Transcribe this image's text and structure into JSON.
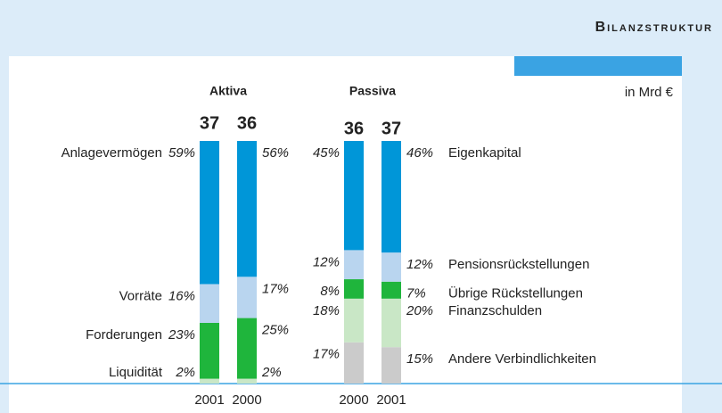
{
  "header": "Bilanzstruktur",
  "chart_data": {
    "type": "stacked-bar-100",
    "unit": "in Mrd €",
    "groups": [
      {
        "name": "Aktiva",
        "categories": [
          "2001",
          "2000"
        ],
        "totals": [
          37,
          36
        ],
        "series": [
          {
            "name": "Liquidität",
            "color": "#c9e7c6",
            "values": [
              2,
              2
            ],
            "value_labels": [
              "2%",
              "2%"
            ]
          },
          {
            "name": "Forderungen",
            "color": "#1fb53c",
            "values": [
              23,
              25
            ],
            "value_labels": [
              "23%",
              "25%"
            ]
          },
          {
            "name": "Vorräte",
            "color": "#b9d5ef",
            "values": [
              16,
              17
            ],
            "value_labels": [
              "16%",
              "17%"
            ]
          },
          {
            "name": "Anlagevermögen",
            "color": "#0096d8",
            "values": [
              59,
              56
            ],
            "value_labels": [
              "59%",
              "56%"
            ]
          }
        ]
      },
      {
        "name": "Passiva",
        "categories": [
          "2000",
          "2001"
        ],
        "totals": [
          36,
          37
        ],
        "series": [
          {
            "name": "Andere Verbindlichkeiten",
            "color": "#cbcbcb",
            "values": [
              17,
              15
            ],
            "value_labels": [
              "17%",
              "15%"
            ]
          },
          {
            "name": "Finanzschulden",
            "color": "#c9e7c6",
            "values": [
              18,
              20
            ],
            "value_labels": [
              "18%",
              "20%"
            ]
          },
          {
            "name": "Übrige Rückstellungen",
            "color": "#1fb53c",
            "values": [
              8,
              7
            ],
            "value_labels": [
              "8%",
              "7%"
            ]
          },
          {
            "name": "Pensionsrückstellungen",
            "color": "#b9d5ef",
            "values": [
              12,
              12
            ],
            "value_labels": [
              "12%",
              "12%"
            ]
          },
          {
            "name": "Eigenkapital",
            "color": "#0096d8",
            "values": [
              45,
              46
            ],
            "value_labels": [
              "45%",
              "46%"
            ]
          }
        ]
      }
    ]
  }
}
